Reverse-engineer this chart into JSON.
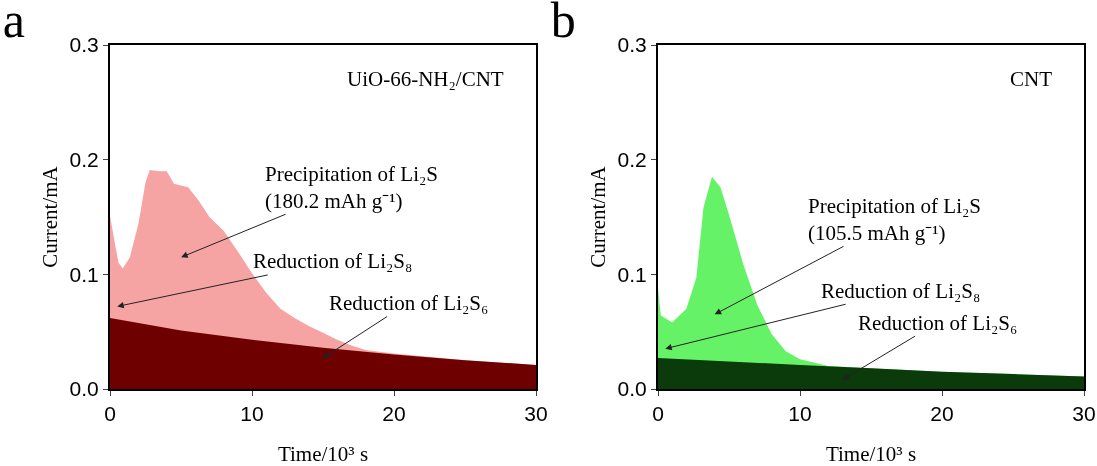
{
  "chart_data": [
    {
      "type": "area",
      "title": "a",
      "xlabel": "Time/10³ s",
      "ylabel": "Current/mA",
      "xlim": [
        0,
        30
      ],
      "ylim": [
        0,
        0.3
      ],
      "xticks": [
        0,
        10,
        20,
        30
      ],
      "yticks": [
        {
          "value": 0,
          "label": "0.0"
        },
        0.1,
        0.2,
        0.3
      ],
      "grid": false,
      "marker": "none",
      "series": [
        {
          "color": "#f5a3a3",
          "x": [
            0,
            0.3,
            0.6,
            0.9,
            1.4,
            2,
            2.5,
            2.8,
            3.5,
            4,
            4.5,
            5.5,
            6.2,
            7,
            8,
            9,
            10,
            11,
            12,
            13,
            14,
            15,
            16,
            17,
            18,
            20,
            25,
            30
          ],
          "values": [
            0.151,
            0.13,
            0.11,
            0.105,
            0.115,
            0.144,
            0.18,
            0.191,
            0.19,
            0.19,
            0.179,
            0.176,
            0.165,
            0.15,
            0.138,
            0.12,
            0.101,
            0.084,
            0.07,
            0.062,
            0.055,
            0.049,
            0.043,
            0.038,
            0.034,
            0.031,
            0.025,
            0.021
          ]
        },
        {
          "color": "#6e0000",
          "x": [
            0,
            5,
            10,
            15,
            20,
            25,
            30
          ],
          "values": [
            0.062,
            0.051,
            0.043,
            0.036,
            0.03,
            0.025,
            0.021
          ]
        }
      ],
      "annotations": [
        "UiO-66-NH₂/CNT",
        "Precipitation of Li₂S\n(180.2 mAh g⁻¹)",
        "Reduction of Li₂S₈",
        "Reduction of Li₂S₆"
      ]
    },
    {
      "type": "area",
      "title": "b",
      "xlabel": "Time/10³ s",
      "ylabel": "Current/mA",
      "xlim": [
        0,
        30
      ],
      "ylim": [
        0,
        0.3
      ],
      "xticks": [
        0,
        10,
        20,
        30
      ],
      "yticks": [
        {
          "value": 0,
          "label": "0.0"
        },
        0.1,
        0.2,
        0.3
      ],
      "grid": false,
      "marker": "none",
      "series": [
        {
          "color": "#66f266",
          "x": [
            0,
            0.2,
            1,
            2,
            2.7,
            3.2,
            3.8,
            4.4,
            5,
            6,
            7,
            8,
            9,
            10,
            12,
            15,
            20,
            25,
            30
          ],
          "values": [
            0.088,
            0.064,
            0.058,
            0.07,
            0.097,
            0.158,
            0.185,
            0.176,
            0.152,
            0.109,
            0.073,
            0.048,
            0.033,
            0.026,
            0.02,
            0.018,
            0.015,
            0.013,
            0.011
          ]
        },
        {
          "color": "#0b3a0b",
          "x": [
            0,
            5,
            10,
            15,
            20,
            25,
            30
          ],
          "values": [
            0.027,
            0.024,
            0.021,
            0.018,
            0.015,
            0.013,
            0.011
          ]
        }
      ],
      "annotations": [
        "CNT",
        "Precipitation of Li₂S\n(105.5 mAh g⁻¹)",
        "Reduction of Li₂S₈",
        "Reduction of Li₂S₆"
      ]
    }
  ]
}
